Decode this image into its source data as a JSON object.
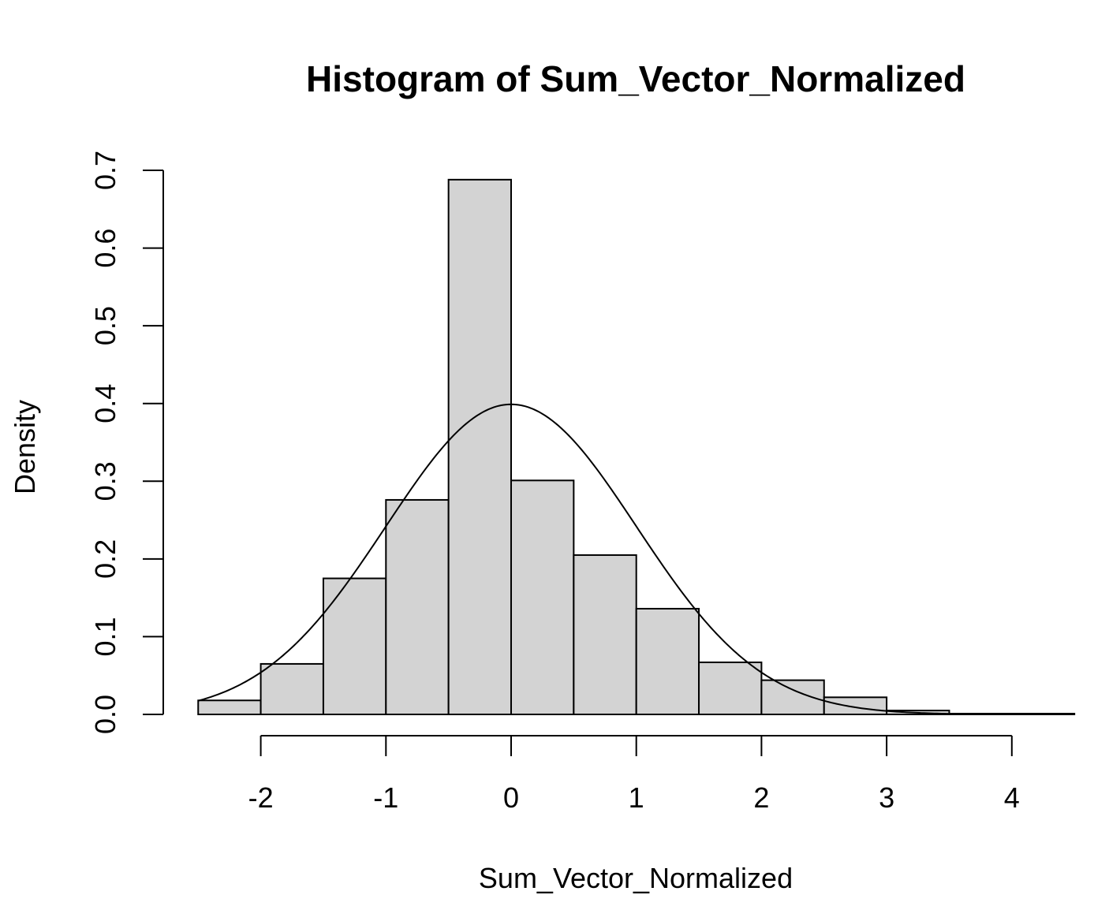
{
  "chart_data": {
    "type": "bar",
    "title": "Histogram of Sum_Vector_Normalized",
    "xlabel": "Sum_Vector_Normalized",
    "ylabel": "Density",
    "xlim": [
      -2.5,
      4.5
    ],
    "ylim": [
      0,
      0.7
    ],
    "x_ticks": [
      "-2",
      "-1",
      "0",
      "1",
      "2",
      "3",
      "4"
    ],
    "y_ticks": [
      "0.0",
      "0.1",
      "0.2",
      "0.3",
      "0.4",
      "0.5",
      "0.6",
      "0.7"
    ],
    "bins": [
      {
        "start": -2.5,
        "end": -2.0,
        "density": 0.018
      },
      {
        "start": -2.0,
        "end": -1.5,
        "density": 0.065
      },
      {
        "start": -1.5,
        "end": -1.0,
        "density": 0.175
      },
      {
        "start": -1.0,
        "end": -0.5,
        "density": 0.276
      },
      {
        "start": -0.5,
        "end": 0.0,
        "density": 0.688
      },
      {
        "start": 0.0,
        "end": 0.5,
        "density": 0.301
      },
      {
        "start": 0.5,
        "end": 1.0,
        "density": 0.205
      },
      {
        "start": 1.0,
        "end": 1.5,
        "density": 0.136
      },
      {
        "start": 1.5,
        "end": 2.0,
        "density": 0.067
      },
      {
        "start": 2.0,
        "end": 2.5,
        "density": 0.044
      },
      {
        "start": 2.5,
        "end": 3.0,
        "density": 0.022
      },
      {
        "start": 3.0,
        "end": 3.5,
        "density": 0.005
      },
      {
        "start": 3.5,
        "end": 4.0,
        "density": 0.001
      },
      {
        "start": 4.0,
        "end": 4.5,
        "density": 0.001
      }
    ],
    "overlay_curve": {
      "type": "normal-density",
      "mean": 0,
      "sd": 1
    },
    "grid": false,
    "colors": {
      "bar_fill": "#d3d3d3",
      "bar_stroke": "#000000",
      "curve": "#000000"
    }
  }
}
